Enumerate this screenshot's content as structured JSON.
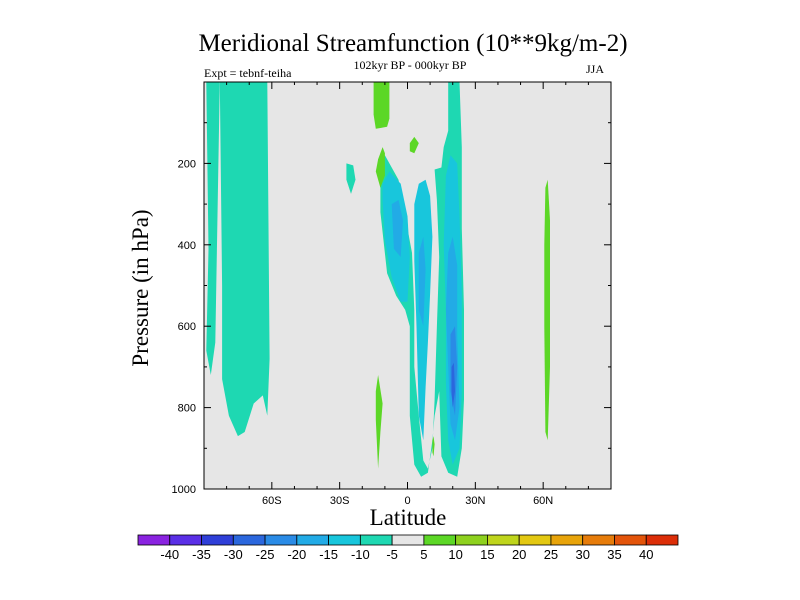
{
  "chart_data": {
    "type": "heatmap",
    "title": "Meridional Streamfunction (10**9kg/m-2)",
    "subtitle": "102kyr BP - 000kyr BP",
    "experiment": "Expt = tebnf-teiha",
    "season": "JJA",
    "xlabel": "Latitude",
    "ylabel": "Pressure (in hPa)",
    "xlim": [
      -90,
      90
    ],
    "ylim": [
      0,
      1000
    ],
    "y_inverted": true,
    "x_ticks": [
      {
        "value": -60,
        "label": "60S"
      },
      {
        "value": -30,
        "label": "30S"
      },
      {
        "value": 0,
        "label": "0"
      },
      {
        "value": 30,
        "label": "30N"
      },
      {
        "value": 60,
        "label": "60N"
      }
    ],
    "y_ticks": [
      200,
      400,
      600,
      800,
      1000
    ],
    "colorbar": {
      "levels": [
        -40,
        -35,
        -30,
        -25,
        -20,
        -15,
        -10,
        -5,
        5,
        10,
        15,
        20,
        25,
        30,
        35,
        40
      ],
      "colors": [
        "#8a23e0",
        "#5a2fe6",
        "#2f3fd8",
        "#2b67dd",
        "#2a8be6",
        "#22abe6",
        "#18c6dc",
        "#1ed8b2",
        "#e6e6e6",
        "#5cd726",
        "#8ed11e",
        "#bfd51c",
        "#e3c812",
        "#e8a40a",
        "#e67c0a",
        "#e3540a",
        "#dc2e08"
      ]
    },
    "background_color": "#e6e6e6",
    "regions": [
      {
        "level": "-10 to -5",
        "color": "#1ed8b2",
        "points": [
          [
            -89,
            0
          ],
          [
            -88,
            410
          ],
          [
            -89,
            660
          ],
          [
            -87,
            720
          ],
          [
            -85,
            640
          ],
          [
            -83,
            0
          ]
        ]
      },
      {
        "level": "-10 to -5",
        "color": "#1ed8b2",
        "points": [
          [
            -83,
            0
          ],
          [
            -82,
            500
          ],
          [
            -82,
            730
          ],
          [
            -79,
            820
          ],
          [
            -75,
            870
          ],
          [
            -72,
            860
          ],
          [
            -68,
            790
          ],
          [
            -64,
            770
          ],
          [
            -62,
            820
          ],
          [
            -61,
            680
          ],
          [
            -62,
            0
          ]
        ]
      },
      {
        "level": "-10 to -5",
        "color": "#1ed8b2",
        "points": [
          [
            -27,
            200
          ],
          [
            -24,
            205
          ],
          [
            -23,
            240
          ],
          [
            -25,
            275
          ],
          [
            -27,
            240
          ]
        ]
      },
      {
        "level": "-10 to -5",
        "color": "#1ed8b2",
        "points": [
          [
            -13,
            190
          ],
          [
            -10,
            180
          ],
          [
            -7,
            210
          ],
          [
            -4,
            240
          ],
          [
            -1,
            330
          ],
          [
            2,
            420
          ],
          [
            3,
            560
          ],
          [
            3,
            700
          ],
          [
            5,
            820
          ],
          [
            7,
            930
          ],
          [
            9,
            950
          ],
          [
            11,
            900
          ],
          [
            12,
            780
          ],
          [
            13,
            600
          ],
          [
            14,
            430
          ],
          [
            13,
            290
          ],
          [
            12,
            215
          ],
          [
            15,
            210
          ],
          [
            16,
            160
          ],
          [
            18,
            120
          ],
          [
            18,
            0
          ],
          [
            23,
            0
          ],
          [
            24,
            160
          ],
          [
            24,
            360
          ],
          [
            25,
            560
          ],
          [
            25,
            780
          ],
          [
            24,
            900
          ],
          [
            22,
            970
          ],
          [
            18,
            960
          ],
          [
            15,
            920
          ],
          [
            14,
            760
          ],
          [
            12,
            820
          ],
          [
            11,
            880
          ],
          [
            9,
            960
          ],
          [
            6,
            970
          ],
          [
            3,
            940
          ],
          [
            1,
            820
          ],
          [
            1,
            600
          ],
          [
            -1,
            560
          ],
          [
            -5,
            525
          ],
          [
            -9,
            470
          ],
          [
            -12,
            320
          ],
          [
            -12,
            220
          ]
        ]
      },
      {
        "level": "-15 to -10",
        "color": "#18c6dc",
        "points": [
          [
            -11,
            250
          ],
          [
            -8,
            220
          ],
          [
            -3,
            250
          ],
          [
            0,
            330
          ],
          [
            1,
            430
          ],
          [
            0,
            540
          ],
          [
            -3,
            540
          ],
          [
            -7,
            480
          ],
          [
            -10,
            390
          ],
          [
            -11,
            290
          ]
        ]
      },
      {
        "level": "-15 to -10",
        "color": "#18c6dc",
        "points": [
          [
            3,
            300
          ],
          [
            5,
            250
          ],
          [
            8,
            240
          ],
          [
            10,
            280
          ],
          [
            11,
            380
          ],
          [
            10,
            520
          ],
          [
            9,
            640
          ],
          [
            8,
            750
          ],
          [
            7,
            880
          ],
          [
            5,
            820
          ],
          [
            4,
            600
          ],
          [
            3,
            440
          ]
        ]
      },
      {
        "level": "-15 to -10",
        "color": "#18c6dc",
        "points": [
          [
            17,
            230
          ],
          [
            19,
            180
          ],
          [
            22,
            200
          ],
          [
            23,
            330
          ],
          [
            24,
            520
          ],
          [
            24,
            760
          ],
          [
            23,
            900
          ],
          [
            20,
            940
          ],
          [
            18,
            880
          ],
          [
            17,
            740
          ],
          [
            17,
            560
          ],
          [
            16,
            400
          ]
        ]
      },
      {
        "level": "-20 to -15",
        "color": "#22abe6",
        "points": [
          [
            -7,
            300
          ],
          [
            -4,
            290
          ],
          [
            -2,
            340
          ],
          [
            -3,
            430
          ],
          [
            -6,
            410
          ]
        ]
      },
      {
        "level": "-20 to -15",
        "color": "#22abe6",
        "points": [
          [
            5,
            420
          ],
          [
            7,
            380
          ],
          [
            8,
            460
          ],
          [
            7,
            600
          ],
          [
            5,
            560
          ]
        ]
      },
      {
        "level": "-20 to -15",
        "color": "#22abe6",
        "points": [
          [
            18,
            420
          ],
          [
            20,
            380
          ],
          [
            22,
            450
          ],
          [
            22,
            620
          ],
          [
            23,
            800
          ],
          [
            21,
            880
          ],
          [
            19,
            840
          ],
          [
            18,
            700
          ],
          [
            17,
            560
          ]
        ]
      },
      {
        "level": "-25 to -20",
        "color": "#2a8be6",
        "points": [
          [
            19,
            620
          ],
          [
            21,
            600
          ],
          [
            22,
            700
          ],
          [
            21,
            820
          ],
          [
            19,
            760
          ]
        ]
      },
      {
        "level": "-30 to -25",
        "color": "#2b67dd",
        "points": [
          [
            19.5,
            700
          ],
          [
            20.5,
            690
          ],
          [
            21,
            760
          ],
          [
            20,
            800
          ],
          [
            19.5,
            760
          ]
        ]
      },
      {
        "level": "5 to 10",
        "color": "#5cd726",
        "points": [
          [
            -15,
            0
          ],
          [
            -8,
            0
          ],
          [
            -8,
            90
          ],
          [
            -9,
            110
          ],
          [
            -14,
            115
          ],
          [
            -15,
            80
          ]
        ]
      },
      {
        "level": "5 to 10",
        "color": "#5cd726",
        "points": [
          [
            -13,
            190
          ],
          [
            -11,
            160
          ],
          [
            -10,
            175
          ],
          [
            -10,
            230
          ],
          [
            -12,
            260
          ],
          [
            -14,
            220
          ]
        ]
      },
      {
        "level": "5 to 10",
        "color": "#5cd726",
        "points": [
          [
            1,
            150
          ],
          [
            3,
            135
          ],
          [
            5,
            150
          ],
          [
            3,
            175
          ],
          [
            1,
            170
          ]
        ]
      },
      {
        "level": "5 to 10",
        "color": "#5cd726",
        "points": [
          [
            -14,
            760
          ],
          [
            -13,
            720
          ],
          [
            -11,
            790
          ],
          [
            -12,
            860
          ],
          [
            -13,
            950
          ],
          [
            -14,
            830
          ]
        ]
      },
      {
        "level": "5 to 10",
        "color": "#5cd726",
        "points": [
          [
            11,
            880
          ],
          [
            11.5,
            870
          ],
          [
            12,
            890
          ],
          [
            11.5,
            920
          ],
          [
            11,
            910
          ]
        ]
      },
      {
        "level": "5 to 10",
        "color": "#5cd726",
        "points": [
          [
            61,
            260
          ],
          [
            62,
            240
          ],
          [
            63,
            340
          ],
          [
            63,
            700
          ],
          [
            62,
            880
          ],
          [
            61,
            860
          ],
          [
            60.5,
            600
          ],
          [
            60.5,
            400
          ]
        ]
      }
    ]
  }
}
